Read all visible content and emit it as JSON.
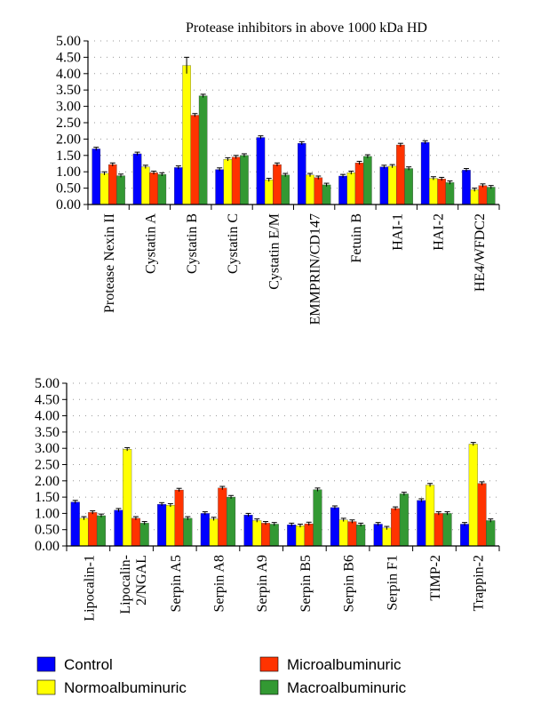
{
  "colors": {
    "control": "#0000ff",
    "normoalbuminuric": "#ffff00",
    "microalbuminuric": "#ff3300",
    "macroalbuminuric": "#339933",
    "axis": "#000000",
    "grid": "#999999"
  },
  "chart_data": [
    {
      "type": "bar",
      "title": "Protease inhibitors in above 1000 kDa HD",
      "xlabel": "",
      "ylabel": "",
      "ylim": [
        0,
        5
      ],
      "yticks": [
        "5.00",
        "4.50",
        "4.00",
        "3.50",
        "3.00",
        "2.50",
        "2.00",
        "1.50",
        "1.00",
        "0.50",
        "0.00"
      ],
      "grid": "dotted",
      "categories": [
        "Protease Nexin II",
        "Cystatin A",
        "Cystatin B",
        "Cystatin C",
        "Cystatin E/M",
        "EMMPRIN/CD147",
        "Fetuin B",
        "HAI-1",
        "HAI-2",
        "HE4/WFDC2"
      ],
      "series": [
        {
          "name": "Control",
          "values": [
            1.7,
            1.55,
            1.13,
            1.07,
            2.05,
            1.87,
            0.87,
            1.15,
            1.9,
            1.05
          ]
        },
        {
          "name": "Normoalbuminuric",
          "values": [
            0.95,
            1.15,
            4.25,
            1.38,
            0.75,
            0.9,
            0.97,
            1.17,
            0.8,
            0.45
          ]
        },
        {
          "name": "Microalbuminuric",
          "values": [
            1.22,
            0.97,
            2.73,
            1.45,
            1.22,
            0.82,
            1.27,
            1.82,
            0.78,
            0.58
          ]
        },
        {
          "name": "Macroalbuminuric",
          "values": [
            0.88,
            0.92,
            3.32,
            1.5,
            0.9,
            0.6,
            1.47,
            1.1,
            0.67,
            0.53
          ]
        }
      ]
    },
    {
      "type": "bar",
      "title": "",
      "xlabel": "",
      "ylabel": "",
      "ylim": [
        0,
        5
      ],
      "yticks": [
        "5.00",
        "4.50",
        "4.00",
        "3.50",
        "3.00",
        "2.50",
        "2.00",
        "1.50",
        "1.00",
        "0.50",
        "0.00"
      ],
      "grid": "dotted",
      "categories": [
        "Lipocalin-1",
        "Lipocalin-2/NGAL",
        "Serpin A5",
        "Serpin A8",
        "Serpin A9",
        "Serpin B5",
        "Serpin B6",
        "Serpin F1",
        "TIMP-2",
        "Trappin-2"
      ],
      "category_lines": [
        [
          "Lipocalin-1"
        ],
        [
          "Lipocalin-",
          "2/NGAL"
        ],
        [
          "Serpin A5"
        ],
        [
          "Serpin A8"
        ],
        [
          "Serpin A9"
        ],
        [
          "Serpin B5"
        ],
        [
          "Serpin B6"
        ],
        [
          "Serpin F1"
        ],
        [
          "TIMP-2"
        ],
        [
          "Trappin-2"
        ]
      ],
      "series": [
        {
          "name": "Control",
          "values": [
            1.35,
            1.1,
            1.28,
            1.0,
            0.95,
            0.65,
            1.18,
            0.67,
            1.4,
            0.67
          ]
        },
        {
          "name": "Normoalbuminuric",
          "values": [
            0.85,
            2.97,
            1.25,
            0.83,
            0.78,
            0.62,
            0.8,
            0.55,
            1.87,
            3.13
          ]
        },
        {
          "name": "Microalbuminuric",
          "values": [
            1.03,
            0.85,
            1.72,
            1.78,
            0.7,
            0.68,
            0.75,
            1.15,
            1.0,
            1.92
          ]
        },
        {
          "name": "Macroalbuminuric",
          "values": [
            0.93,
            0.7,
            0.85,
            1.5,
            0.67,
            1.73,
            0.65,
            1.6,
            1.0,
            0.78
          ]
        }
      ]
    }
  ],
  "legend": [
    {
      "label": "Control",
      "color": "#0000ff"
    },
    {
      "label": "Microalbuminuric",
      "color": "#ff3300"
    },
    {
      "label": "Normoalbuminuric",
      "color": "#ffff00"
    },
    {
      "label": "Macroalbuminuric",
      "color": "#339933"
    }
  ]
}
